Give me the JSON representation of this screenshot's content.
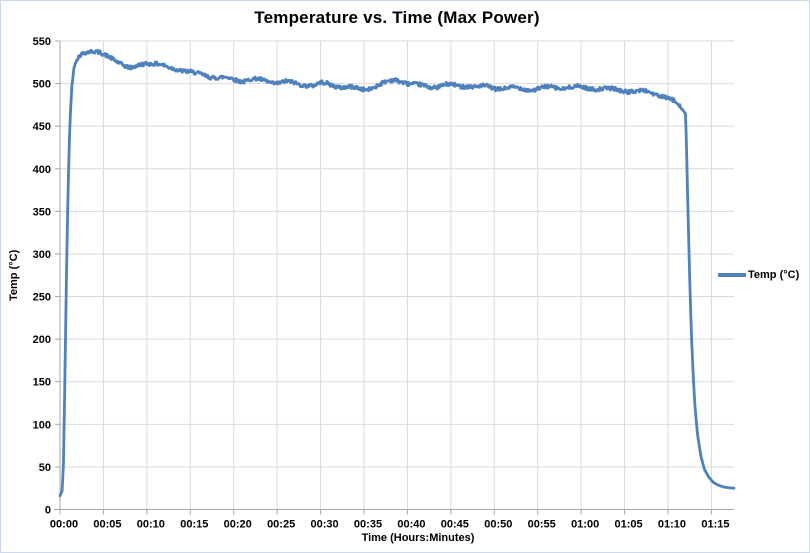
{
  "chart_data": {
    "type": "line",
    "title": "Temperature vs. Time (Max Power)",
    "xlabel": "Time (Hours:Minutes)",
    "ylabel": "Temp (°C)",
    "grid": true,
    "legend_position": "right",
    "ylim": [
      0,
      550
    ],
    "y_ticks": [
      0,
      50,
      100,
      150,
      200,
      250,
      300,
      350,
      400,
      450,
      500,
      550
    ],
    "xlim_minutes": [
      0,
      77.6
    ],
    "x_ticks": [
      {
        "minutes": 0,
        "label": "00:00"
      },
      {
        "minutes": 5,
        "label": "00:05"
      },
      {
        "minutes": 10,
        "label": "00:10"
      },
      {
        "minutes": 15,
        "label": "00:15"
      },
      {
        "minutes": 20,
        "label": "00:20"
      },
      {
        "minutes": 25,
        "label": "00:25"
      },
      {
        "minutes": 30,
        "label": "00:30"
      },
      {
        "minutes": 35,
        "label": "00:35"
      },
      {
        "minutes": 40,
        "label": "00:40"
      },
      {
        "minutes": 45,
        "label": "00:45"
      },
      {
        "minutes": 50,
        "label": "00:50"
      },
      {
        "minutes": 55,
        "label": "00:55"
      },
      {
        "minutes": 60,
        "label": "01:00"
      },
      {
        "minutes": 65,
        "label": "01:05"
      },
      {
        "minutes": 70,
        "label": "01:10"
      },
      {
        "minutes": 75,
        "label": "01:15"
      }
    ],
    "colors": {
      "series": "#4F81BD",
      "gridline": "#D9D9D9",
      "axis": "#A6A6A6",
      "text": "#000000",
      "background": "#FFFFFF"
    },
    "series": [
      {
        "name": "Temp (°C)",
        "color": "#4F81BD",
        "noise_amplitude_c": 2.2,
        "noise_band_minutes": [
          1.9,
          71.4
        ],
        "points_time_min_temp_c": [
          [
            0.0,
            16
          ],
          [
            0.25,
            22
          ],
          [
            0.4,
            55
          ],
          [
            0.55,
            145
          ],
          [
            0.7,
            245
          ],
          [
            0.85,
            335
          ],
          [
            1.0,
            405
          ],
          [
            1.15,
            455
          ],
          [
            1.35,
            495
          ],
          [
            1.6,
            518
          ],
          [
            1.9,
            529
          ],
          [
            2.3,
            535
          ],
          [
            2.8,
            538
          ],
          [
            3.5,
            538
          ],
          [
            4.2,
            537
          ],
          [
            5.0,
            535
          ],
          [
            5.8,
            533
          ],
          [
            6.4,
            529
          ],
          [
            7.0,
            524
          ],
          [
            7.6,
            519
          ],
          [
            8.2,
            517
          ],
          [
            8.8,
            520
          ],
          [
            9.4,
            523
          ],
          [
            10.0,
            524
          ],
          [
            10.8,
            522
          ],
          [
            11.6,
            520
          ],
          [
            12.4,
            518
          ],
          [
            13.2,
            518
          ],
          [
            14.0,
            516
          ],
          [
            14.8,
            514
          ],
          [
            15.6,
            512
          ],
          [
            16.4,
            512
          ],
          [
            17.2,
            510
          ],
          [
            18.0,
            508
          ],
          [
            18.8,
            507
          ],
          [
            19.6,
            506
          ],
          [
            20.4,
            504
          ],
          [
            21.2,
            503
          ],
          [
            22.0,
            504
          ],
          [
            22.8,
            503
          ],
          [
            23.6,
            502
          ],
          [
            24.4,
            501
          ],
          [
            25.2,
            501
          ],
          [
            26.0,
            502
          ],
          [
            26.8,
            501
          ],
          [
            27.6,
            500
          ],
          [
            28.4,
            500
          ],
          [
            29.2,
            499
          ],
          [
            30.0,
            501
          ],
          [
            30.8,
            500
          ],
          [
            31.6,
            498
          ],
          [
            32.4,
            496
          ],
          [
            33.2,
            495
          ],
          [
            34.0,
            493
          ],
          [
            34.8,
            492
          ],
          [
            35.4,
            493
          ],
          [
            36.2,
            496
          ],
          [
            37.0,
            499
          ],
          [
            37.8,
            502
          ],
          [
            38.6,
            505
          ],
          [
            39.4,
            504
          ],
          [
            40.2,
            501
          ],
          [
            41.0,
            499
          ],
          [
            41.8,
            498
          ],
          [
            42.6,
            497
          ],
          [
            43.4,
            497
          ],
          [
            44.2,
            498
          ],
          [
            45.0,
            497
          ],
          [
            46.0,
            496
          ],
          [
            47.0,
            497
          ],
          [
            48.0,
            495
          ],
          [
            49.0,
            496
          ],
          [
            50.0,
            495
          ],
          [
            51.5,
            496
          ],
          [
            53.0,
            495
          ],
          [
            54.5,
            494
          ],
          [
            56.0,
            495
          ],
          [
            57.5,
            494
          ],
          [
            59.0,
            495
          ],
          [
            60.5,
            494
          ],
          [
            62.0,
            495
          ],
          [
            63.5,
            494
          ],
          [
            65.0,
            493
          ],
          [
            66.0,
            492
          ],
          [
            67.0,
            491
          ],
          [
            68.0,
            489
          ],
          [
            69.0,
            486
          ],
          [
            69.8,
            483
          ],
          [
            70.6,
            478
          ],
          [
            71.2,
            474
          ],
          [
            71.7,
            469
          ],
          [
            72.0,
            465
          ],
          [
            72.1,
            440
          ],
          [
            72.2,
            395
          ],
          [
            72.35,
            330
          ],
          [
            72.5,
            270
          ],
          [
            72.7,
            205
          ],
          [
            72.9,
            158
          ],
          [
            73.1,
            122
          ],
          [
            73.4,
            88
          ],
          [
            73.8,
            62
          ],
          [
            74.2,
            47
          ],
          [
            74.7,
            38
          ],
          [
            75.2,
            32
          ],
          [
            75.8,
            28.5
          ],
          [
            76.4,
            26.5
          ],
          [
            77.0,
            25.5
          ],
          [
            77.6,
            25
          ]
        ]
      }
    ]
  }
}
